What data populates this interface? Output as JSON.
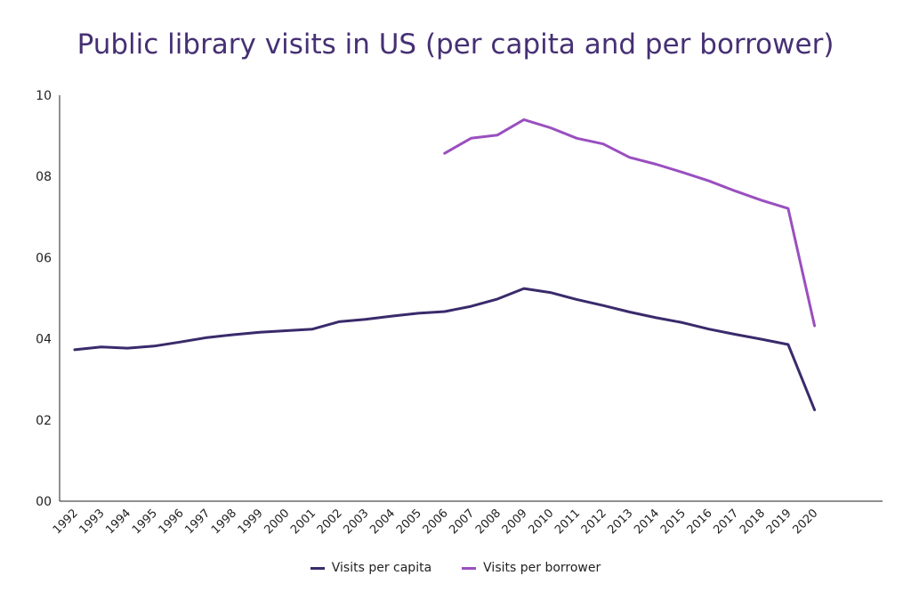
{
  "chart_data": {
    "type": "line",
    "title": "Public library visits in US (per capita and per borrower)",
    "xlabel": "",
    "ylabel": "",
    "x": [
      "1992",
      "1993",
      "1994",
      "1995",
      "1996",
      "1997",
      "1998",
      "1999",
      "2000",
      "2001",
      "2002",
      "2003",
      "2004",
      "2005",
      "2006",
      "2007",
      "2008",
      "2009",
      "2010",
      "2011",
      "2012",
      "2013",
      "2014",
      "2015",
      "2016",
      "2017",
      "2018",
      "2019",
      "2020"
    ],
    "ylim": [
      0,
      10
    ],
    "yticks": [
      "00",
      "02",
      "04",
      "06",
      "08",
      "10"
    ],
    "grid": false,
    "legend_position": "bottom",
    "series": [
      {
        "name": "Visits per capita",
        "color": "#3a2a6b",
        "values": [
          3.73,
          3.8,
          3.77,
          3.82,
          3.92,
          4.03,
          4.1,
          4.16,
          4.2,
          4.24,
          4.42,
          4.48,
          4.56,
          4.63,
          4.67,
          4.8,
          4.98,
          5.24,
          5.14,
          4.97,
          4.82,
          4.66,
          4.52,
          4.4,
          4.24,
          4.11,
          3.99,
          3.86,
          2.25
        ]
      },
      {
        "name": "Visits per borrower",
        "color": "#9a4fbf",
        "values": [
          null,
          null,
          null,
          null,
          null,
          null,
          null,
          null,
          null,
          null,
          null,
          null,
          null,
          null,
          8.57,
          8.94,
          9.02,
          9.4,
          9.2,
          8.94,
          8.8,
          8.47,
          8.3,
          8.1,
          7.89,
          7.64,
          7.41,
          7.21,
          4.32
        ]
      }
    ]
  }
}
